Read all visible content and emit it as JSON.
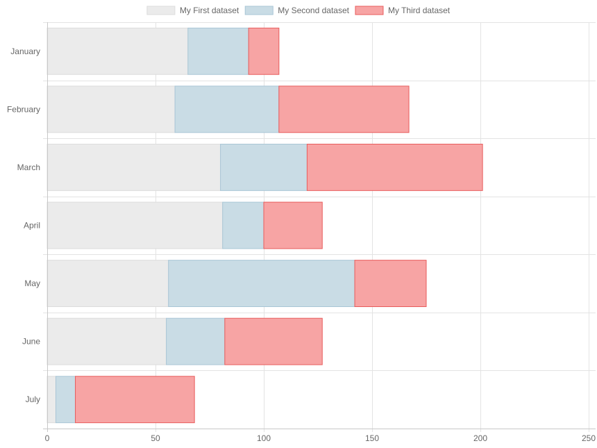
{
  "chart_data": {
    "type": "bar",
    "orientation": "horizontal",
    "stacked": true,
    "categories": [
      "January",
      "February",
      "March",
      "April",
      "May",
      "June",
      "July"
    ],
    "series": [
      {
        "name": "My First dataset",
        "values": [
          65,
          59,
          80,
          81,
          56,
          55,
          4
        ],
        "color": "#ebebeb",
        "border": "#dcdcdc"
      },
      {
        "name": "My Second dataset",
        "values": [
          28,
          48,
          40,
          19,
          86,
          27,
          9
        ],
        "color": "#c9dce5",
        "border": "#a9c6d6"
      },
      {
        "name": "My Third dataset",
        "values": [
          14,
          60,
          81,
          27,
          33,
          45,
          55
        ],
        "color": "#f7a4a4",
        "border": "#e85c5c"
      }
    ],
    "xlim": [
      0,
      250
    ],
    "xticks": [
      0,
      50,
      100,
      150,
      200,
      250
    ],
    "grid": true,
    "legend_position": "top"
  }
}
